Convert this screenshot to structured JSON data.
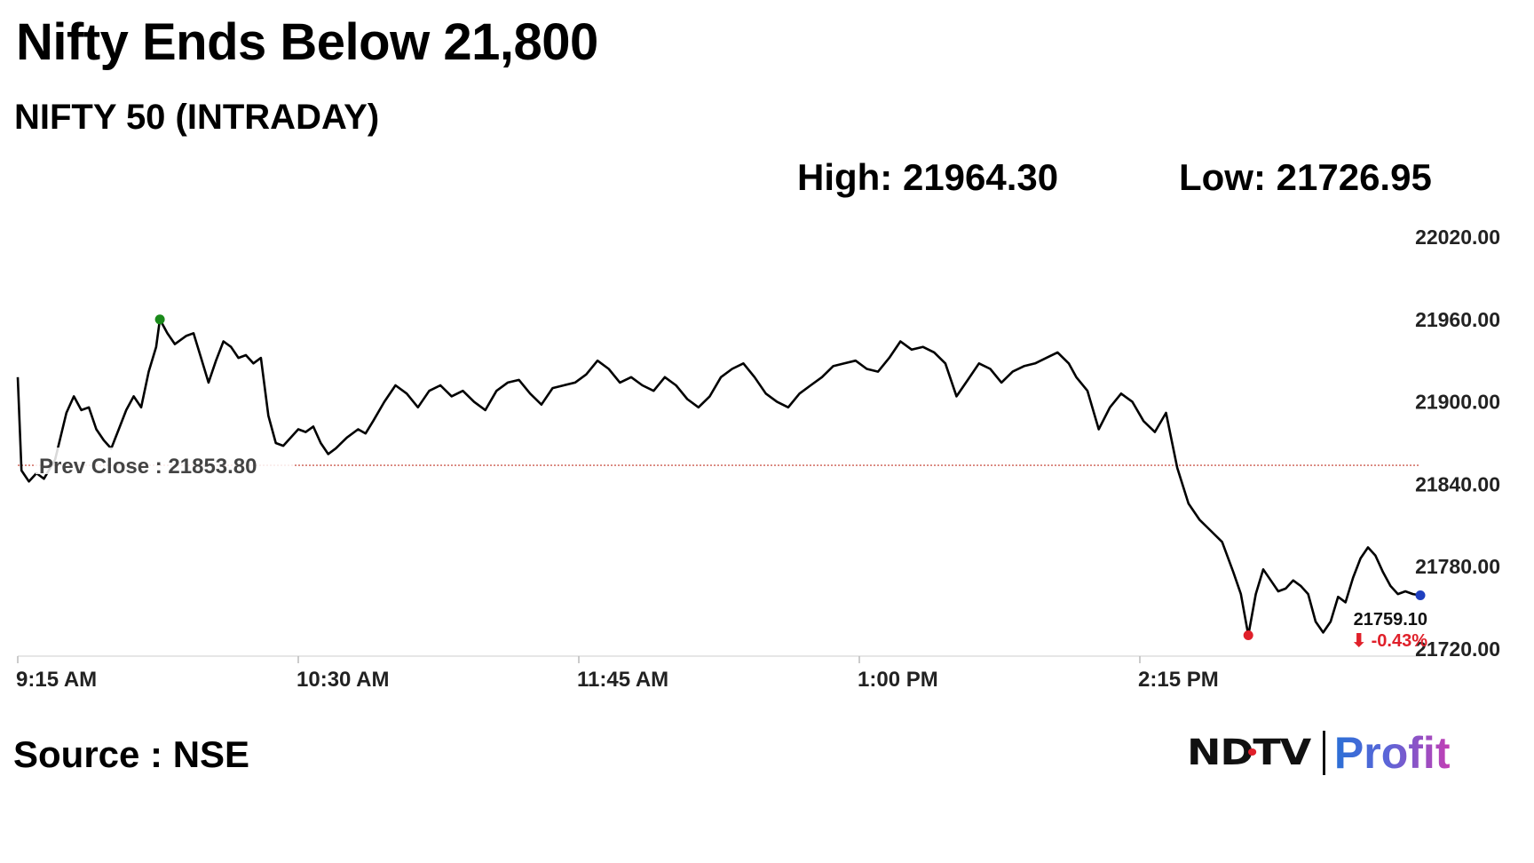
{
  "header": {
    "headline": "Nifty Ends Below 21,800",
    "subtitle": "NIFTY 50 (INTRADAY)"
  },
  "stats": {
    "high": "High: 21964.30",
    "low": "Low: 21726.95"
  },
  "footer": {
    "source": "Source : NSE",
    "logo_left": "NDTV",
    "logo_right": "Profit"
  },
  "colors": {
    "line": "#000000",
    "prev_close_line": "#c0392b",
    "high_marker": "#1a8a1a",
    "low_marker": "#e0202a",
    "last_marker": "#1f3fbf",
    "change_negative": "#e0202a",
    "axis": "#dddddd"
  },
  "chart_data": {
    "type": "line",
    "title": "",
    "xlabel": "",
    "ylabel": "",
    "x_unit": "time of day",
    "x_range": [
      "09:15",
      "15:30"
    ],
    "ylim": [
      21720,
      22020
    ],
    "y_ticks": [
      "22020.00",
      "21960.00",
      "21900.00",
      "21840.00",
      "21780.00",
      "21720.00"
    ],
    "x_ticks": [
      {
        "time": "09:15",
        "label": "9:15 AM"
      },
      {
        "time": "10:30",
        "label": "10:30 AM"
      },
      {
        "time": "11:45",
        "label": "11:45 AM"
      },
      {
        "time": "13:00",
        "label": "1:00 PM"
      },
      {
        "time": "14:15",
        "label": "2:15 PM"
      }
    ],
    "prev_close": {
      "value": 21853.8,
      "label": "Prev Close : 21853.80"
    },
    "high_point": {
      "time": "09:53",
      "value": 21960
    },
    "low_point": {
      "time": "14:44",
      "value": 21730
    },
    "last": {
      "time": "15:30",
      "value": 21759.1,
      "value_label": "21759.10",
      "change_label": "⬇ -0.43%"
    },
    "grid": false,
    "series": [
      {
        "points": [
          [
            "09:15",
            21918
          ],
          [
            "09:16",
            21850
          ],
          [
            "09:17",
            21846
          ],
          [
            "09:18",
            21842
          ],
          [
            "09:20",
            21848
          ],
          [
            "09:22",
            21844
          ],
          [
            "09:25",
            21858
          ],
          [
            "09:28",
            21892
          ],
          [
            "09:30",
            21904
          ],
          [
            "09:32",
            21894
          ],
          [
            "09:34",
            21896
          ],
          [
            "09:36",
            21880
          ],
          [
            "09:38",
            21872
          ],
          [
            "09:40",
            21866
          ],
          [
            "09:42",
            21880
          ],
          [
            "09:44",
            21894
          ],
          [
            "09:46",
            21904
          ],
          [
            "09:48",
            21896
          ],
          [
            "09:50",
            21922
          ],
          [
            "09:52",
            21940
          ],
          [
            "09:53",
            21960
          ],
          [
            "09:55",
            21950
          ],
          [
            "09:57",
            21942
          ],
          [
            "10:00",
            21948
          ],
          [
            "10:02",
            21950
          ],
          [
            "10:04",
            21932
          ],
          [
            "10:06",
            21914
          ],
          [
            "10:08",
            21930
          ],
          [
            "10:10",
            21944
          ],
          [
            "10:12",
            21940
          ],
          [
            "10:14",
            21932
          ],
          [
            "10:16",
            21934
          ],
          [
            "10:18",
            21928
          ],
          [
            "10:20",
            21932
          ],
          [
            "10:22",
            21890
          ],
          [
            "10:24",
            21870
          ],
          [
            "10:26",
            21868
          ],
          [
            "10:28",
            21874
          ],
          [
            "10:30",
            21880
          ],
          [
            "10:32",
            21878
          ],
          [
            "10:34",
            21882
          ],
          [
            "10:36",
            21870
          ],
          [
            "10:38",
            21862
          ],
          [
            "10:40",
            21866
          ],
          [
            "10:43",
            21874
          ],
          [
            "10:46",
            21880
          ],
          [
            "10:48",
            21877
          ],
          [
            "10:50",
            21886
          ],
          [
            "10:53",
            21900
          ],
          [
            "10:56",
            21912
          ],
          [
            "10:59",
            21906
          ],
          [
            "11:02",
            21896
          ],
          [
            "11:05",
            21908
          ],
          [
            "11:08",
            21912
          ],
          [
            "11:11",
            21904
          ],
          [
            "11:14",
            21908
          ],
          [
            "11:17",
            21900
          ],
          [
            "11:20",
            21894
          ],
          [
            "11:23",
            21908
          ],
          [
            "11:26",
            21914
          ],
          [
            "11:29",
            21916
          ],
          [
            "11:32",
            21906
          ],
          [
            "11:35",
            21898
          ],
          [
            "11:38",
            21910
          ],
          [
            "11:41",
            21912
          ],
          [
            "11:44",
            21914
          ],
          [
            "11:47",
            21920
          ],
          [
            "11:50",
            21930
          ],
          [
            "11:53",
            21924
          ],
          [
            "11:56",
            21914
          ],
          [
            "11:59",
            21918
          ],
          [
            "12:02",
            21912
          ],
          [
            "12:05",
            21908
          ],
          [
            "12:08",
            21918
          ],
          [
            "12:11",
            21912
          ],
          [
            "12:14",
            21902
          ],
          [
            "12:17",
            21896
          ],
          [
            "12:20",
            21904
          ],
          [
            "12:23",
            21918
          ],
          [
            "12:26",
            21924
          ],
          [
            "12:29",
            21928
          ],
          [
            "12:32",
            21918
          ],
          [
            "12:35",
            21906
          ],
          [
            "12:38",
            21900
          ],
          [
            "12:41",
            21896
          ],
          [
            "12:44",
            21906
          ],
          [
            "12:47",
            21912
          ],
          [
            "12:50",
            21918
          ],
          [
            "12:53",
            21926
          ],
          [
            "12:56",
            21928
          ],
          [
            "12:59",
            21930
          ],
          [
            "13:02",
            21924
          ],
          [
            "13:05",
            21922
          ],
          [
            "13:08",
            21932
          ],
          [
            "13:11",
            21944
          ],
          [
            "13:14",
            21938
          ],
          [
            "13:17",
            21940
          ],
          [
            "13:20",
            21936
          ],
          [
            "13:23",
            21928
          ],
          [
            "13:26",
            21904
          ],
          [
            "13:29",
            21916
          ],
          [
            "13:32",
            21928
          ],
          [
            "13:35",
            21924
          ],
          [
            "13:38",
            21914
          ],
          [
            "13:41",
            21922
          ],
          [
            "13:44",
            21926
          ],
          [
            "13:47",
            21928
          ],
          [
            "13:50",
            21932
          ],
          [
            "13:53",
            21936
          ],
          [
            "13:56",
            21928
          ],
          [
            "13:58",
            21918
          ],
          [
            "14:01",
            21908
          ],
          [
            "14:04",
            21880
          ],
          [
            "14:07",
            21896
          ],
          [
            "14:10",
            21906
          ],
          [
            "14:13",
            21900
          ],
          [
            "14:16",
            21886
          ],
          [
            "14:19",
            21878
          ],
          [
            "14:22",
            21892
          ],
          [
            "14:25",
            21852
          ],
          [
            "14:28",
            21826
          ],
          [
            "14:31",
            21814
          ],
          [
            "14:34",
            21806
          ],
          [
            "14:37",
            21798
          ],
          [
            "14:40",
            21776
          ],
          [
            "14:42",
            21760
          ],
          [
            "14:44",
            21730
          ],
          [
            "14:46",
            21760
          ],
          [
            "14:48",
            21778
          ],
          [
            "14:50",
            21770
          ],
          [
            "14:52",
            21762
          ],
          [
            "14:54",
            21764
          ],
          [
            "14:56",
            21770
          ],
          [
            "14:58",
            21766
          ],
          [
            "15:00",
            21760
          ],
          [
            "15:02",
            21740
          ],
          [
            "15:04",
            21732
          ],
          [
            "15:06",
            21740
          ],
          [
            "15:08",
            21758
          ],
          [
            "15:10",
            21754
          ],
          [
            "15:12",
            21772
          ],
          [
            "15:14",
            21786
          ],
          [
            "15:16",
            21794
          ],
          [
            "15:18",
            21788
          ],
          [
            "15:20",
            21776
          ],
          [
            "15:22",
            21766
          ],
          [
            "15:24",
            21760
          ],
          [
            "15:26",
            21762
          ],
          [
            "15:28",
            21760
          ],
          [
            "15:30",
            21759.1
          ]
        ]
      }
    ]
  }
}
